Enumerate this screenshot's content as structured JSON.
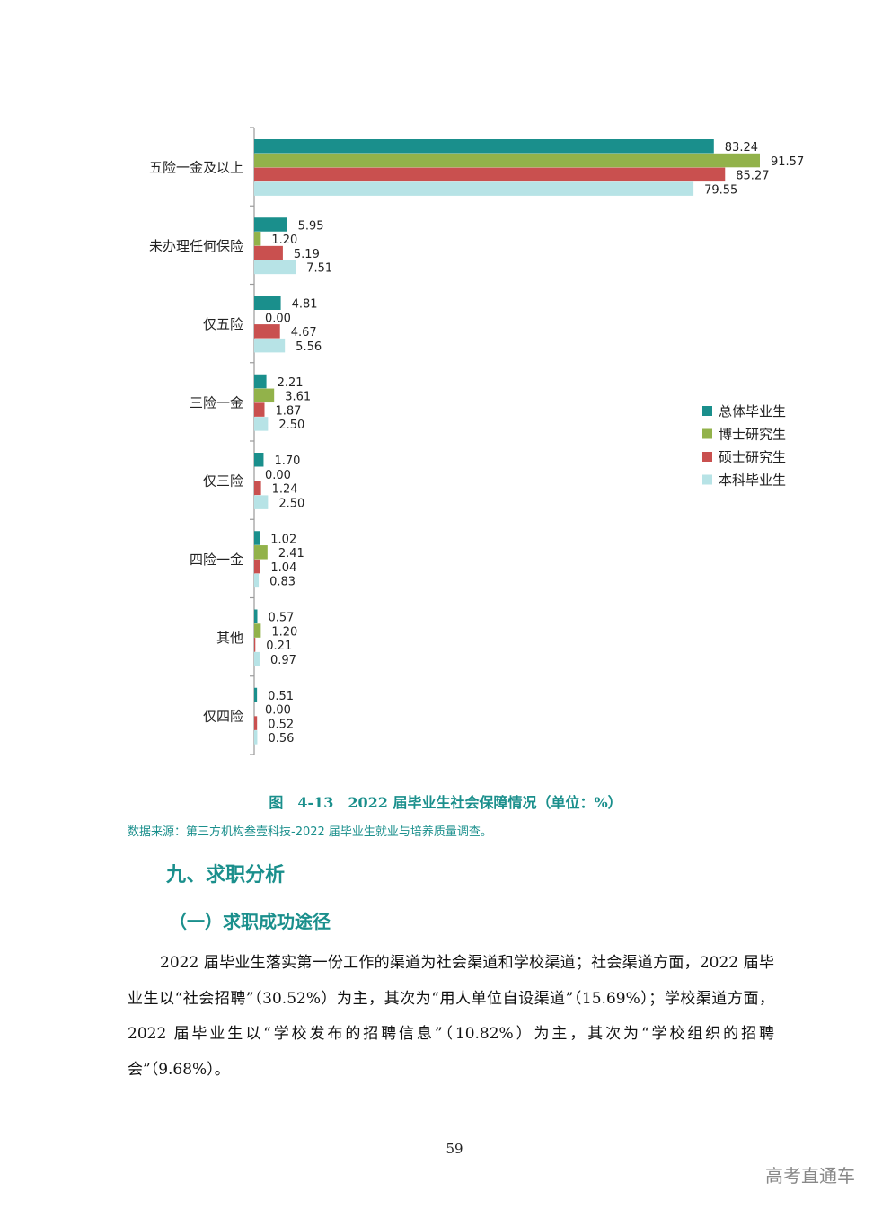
{
  "chart_data": {
    "type": "bar",
    "orientation": "horizontal",
    "categories": [
      "五险一金及以上",
      "未办理任何保险",
      "仅五险",
      "三险一金",
      "仅三险",
      "四险一金",
      "其他",
      "仅四险"
    ],
    "series": [
      {
        "name": "总体毕业生",
        "color": "#1a8f8c",
        "values": [
          83.24,
          5.95,
          4.81,
          2.21,
          1.7,
          1.02,
          0.57,
          0.51
        ],
        "labels": [
          "83.24",
          "5.95",
          "4.81",
          "2.21",
          "1.70",
          "1.02",
          "0.57",
          "0.51"
        ]
      },
      {
        "name": "博士研究生",
        "color": "#92b24a",
        "values": [
          91.57,
          1.2,
          0.0,
          3.61,
          0.0,
          2.41,
          1.2,
          0.0
        ],
        "labels": [
          "91.57",
          "1.20",
          "0.00",
          "3.61",
          "0.00",
          "2.41",
          "1.20",
          "0.00"
        ]
      },
      {
        "name": "硕士研究生",
        "color": "#c9504f",
        "values": [
          85.27,
          5.19,
          4.67,
          1.87,
          1.24,
          1.04,
          0.21,
          0.52
        ],
        "labels": [
          "85.27",
          "5.19",
          "4.67",
          "1.87",
          "1.24",
          "1.04",
          "0.21",
          "0.52"
        ]
      },
      {
        "name": "本科毕业生",
        "color": "#b7e3e6",
        "values": [
          79.55,
          7.51,
          5.56,
          2.5,
          2.5,
          0.83,
          0.97,
          0.56
        ],
        "labels": [
          "79.55",
          "7.51",
          "5.56",
          "2.50",
          "2.50",
          "0.83",
          "0.97",
          "0.56"
        ]
      }
    ],
    "xlim": [
      0,
      100
    ],
    "legend_position": "right",
    "title": "",
    "xlabel": "",
    "ylabel": ""
  },
  "caption": "图　4-13　2022 届毕业生社会保障情况（单位：%）",
  "source": "数据来源：第三方机构叁壹科技-2022 届毕业生就业与培养质量调查。",
  "heading1": "九、求职分析",
  "heading2": "（一）求职成功途径",
  "paragraph": "2022 届毕业生落实第一份工作的渠道为社会渠道和学校渠道；社会渠道方面，2022 届毕业生以“社会招聘”（30.52%）为主，其次为“用人单位自设渠道”（15.69%）；学校渠道方面，2022 届毕业生以“学校发布的招聘信息”（10.82%）为主，其次为“学校组织的招聘会”（9.68%）。",
  "page_number": "59",
  "watermark": "高考直通车"
}
